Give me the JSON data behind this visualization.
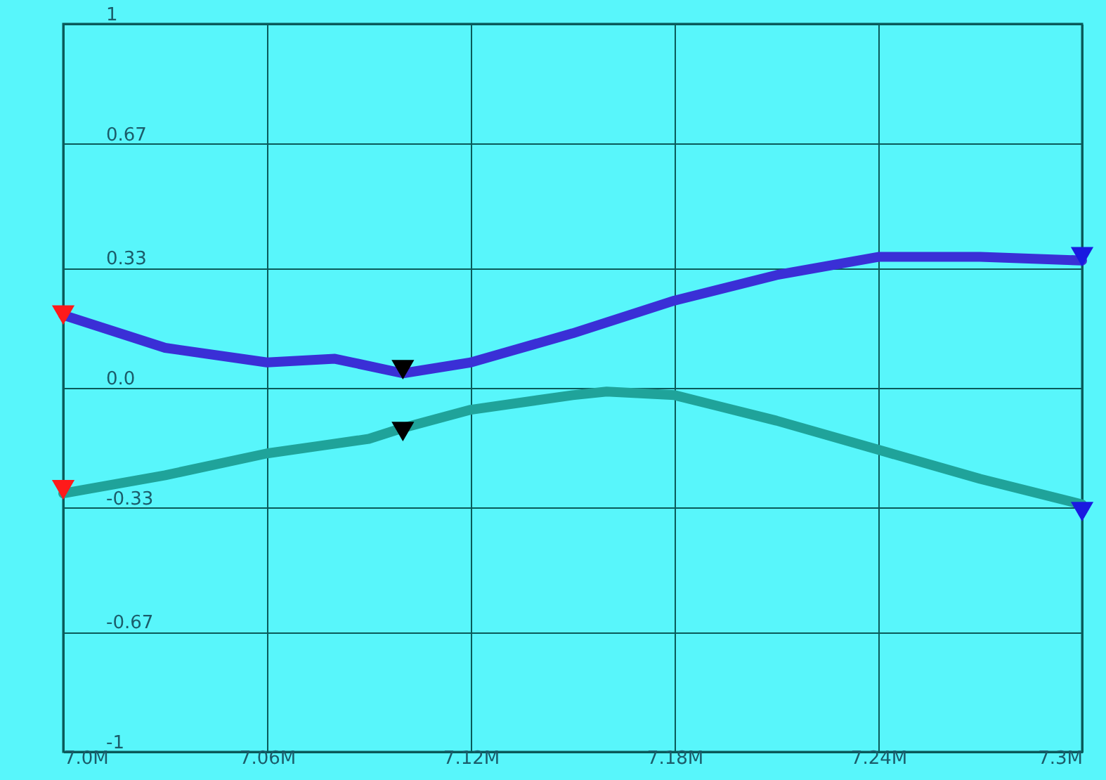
{
  "chart_data": {
    "type": "line",
    "series": [
      {
        "color": "#3a2fd6",
        "x": [
          7.0,
          7.03,
          7.06,
          7.08,
          7.1,
          7.12,
          7.135,
          7.15,
          7.18,
          7.21,
          7.24,
          7.27,
          7.3
        ],
        "values": [
          0.2,
          0.11,
          0.07,
          0.08,
          0.04,
          0.07,
          0.11,
          0.15,
          0.24,
          0.31,
          0.36,
          0.36,
          0.35
        ]
      },
      {
        "color": "#1fa39a",
        "x": [
          7.0,
          7.03,
          7.06,
          7.075,
          7.09,
          7.1,
          7.12,
          7.15,
          7.16,
          7.18,
          7.21,
          7.24,
          7.27,
          7.3
        ],
        "values": [
          -0.29,
          -0.24,
          -0.18,
          -0.16,
          -0.14,
          -0.11,
          -0.06,
          -0.02,
          -0.01,
          -0.02,
          -0.09,
          -0.17,
          -0.25,
          -0.32
        ]
      },
      {
        "type": "scatter",
        "marker": "triangle",
        "x": [
          7.0,
          7.1,
          7.3,
          7.0,
          7.1,
          7.3
        ],
        "values": [
          0.2,
          0.05,
          0.36,
          -0.28,
          -0.12,
          -0.34
        ],
        "colors": [
          "#ff1a1a",
          "#000000",
          "#1a1ae0",
          "#ff1a1a",
          "#000000",
          "#1a1ae0"
        ]
      }
    ],
    "xlim": [
      7.0,
      7.3
    ],
    "xticks": [
      {
        "value": 7.0,
        "label": "7.0M"
      },
      {
        "value": 7.06,
        "label": "7.06M"
      },
      {
        "value": 7.12,
        "label": "7.12M"
      },
      {
        "value": 7.18,
        "label": "7.18M"
      },
      {
        "value": 7.24,
        "label": "7.24M"
      },
      {
        "value": 7.3,
        "label": "7.3M"
      }
    ],
    "ylim": [
      -1,
      1
    ],
    "yticks": [
      -1,
      -0.67,
      -0.33,
      {
        "value": 0,
        "label": "0.0"
      },
      0.33,
      0.67,
      1
    ],
    "grid": true
  }
}
